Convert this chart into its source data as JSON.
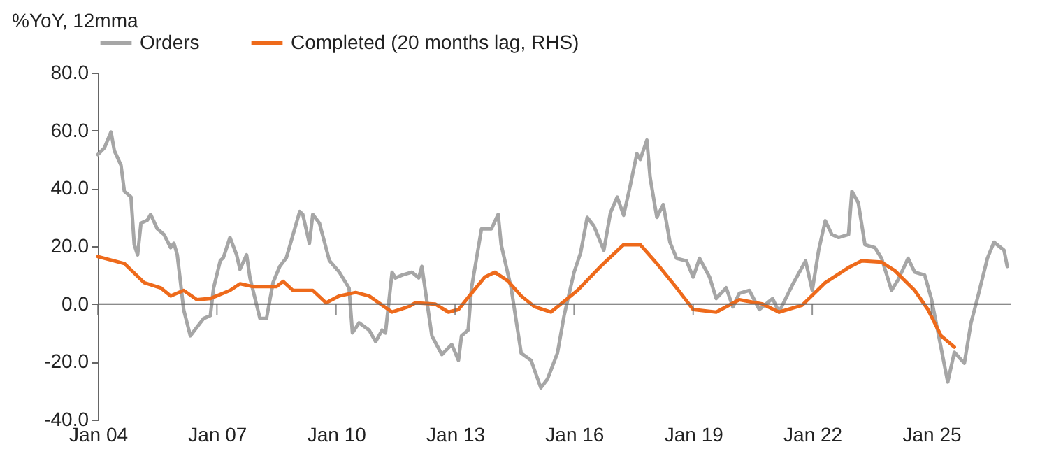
{
  "chart_data": {
    "type": "line",
    "ylabel": "%YoY, 12mma",
    "ylim": [
      -40,
      80
    ],
    "yticks": [
      {
        "value": -40,
        "label": "-40.0"
      },
      {
        "value": -20,
        "label": "-20.0"
      },
      {
        "value": 0,
        "label": "0.0"
      },
      {
        "value": 20,
        "label": "20.0"
      },
      {
        "value": 40,
        "label": "40.0"
      },
      {
        "value": 60,
        "label": "60.0"
      },
      {
        "value": 80,
        "label": "80.0"
      }
    ],
    "xlim": [
      "2004-01",
      "2027-01"
    ],
    "xticks": [
      {
        "value": "2004-01",
        "label": "Jan 04"
      },
      {
        "value": "2007-01",
        "label": "Jan 07"
      },
      {
        "value": "2010-01",
        "label": "Jan 10"
      },
      {
        "value": "2013-01",
        "label": "Jan 13"
      },
      {
        "value": "2016-01",
        "label": "Jan 16"
      },
      {
        "value": "2019-01",
        "label": "Jan 19"
      },
      {
        "value": "2022-01",
        "label": "Jan 22"
      },
      {
        "value": "2025-01",
        "label": "Jan 25"
      }
    ],
    "grid": false,
    "legend": "top",
    "marker": "none",
    "line_style": "solid",
    "ref_lines": [
      {
        "axis": "y",
        "value": 0,
        "color": "#666666"
      }
    ],
    "series": [
      {
        "name": "Orders",
        "color": "#a6a6a6",
        "x": [
          "2004-01",
          "2004-03",
          "2004-05",
          "2004-06",
          "2004-08",
          "2004-09",
          "2004-11",
          "2004-12",
          "2005-01",
          "2005-02",
          "2005-04",
          "2005-05",
          "2005-07",
          "2005-09",
          "2005-11",
          "2005-12",
          "2006-01",
          "2006-03",
          "2006-05",
          "2006-07",
          "2006-09",
          "2006-11",
          "2006-12",
          "2007-02",
          "2007-03",
          "2007-05",
          "2007-07",
          "2007-08",
          "2007-10",
          "2007-11",
          "2008-02",
          "2008-04",
          "2008-06",
          "2008-08",
          "2008-10",
          "2009-02",
          "2009-03",
          "2009-05",
          "2009-06",
          "2009-08",
          "2009-11",
          "2010-02",
          "2010-05",
          "2010-06",
          "2010-08",
          "2010-11",
          "2011-01",
          "2011-03",
          "2011-04",
          "2011-06",
          "2011-07",
          "2011-09",
          "2011-12",
          "2012-02",
          "2012-03",
          "2012-06",
          "2012-09",
          "2012-12",
          "2013-02",
          "2013-03",
          "2013-05",
          "2013-06",
          "2013-09",
          "2013-12",
          "2014-02",
          "2014-03",
          "2014-06",
          "2014-09",
          "2014-12",
          "2015-03",
          "2015-05",
          "2015-08",
          "2015-10",
          "2016-01",
          "2016-03",
          "2016-05",
          "2016-07",
          "2016-10",
          "2016-12",
          "2017-02",
          "2017-04",
          "2017-06",
          "2017-08",
          "2017-09",
          "2017-11",
          "2017-12",
          "2018-02",
          "2018-04",
          "2018-06",
          "2018-08",
          "2018-11",
          "2019-01",
          "2019-03",
          "2019-06",
          "2019-08",
          "2019-11",
          "2020-01",
          "2020-03",
          "2020-06",
          "2020-09",
          "2021-01",
          "2021-03",
          "2021-07",
          "2021-11",
          "2022-01",
          "2022-03",
          "2022-05",
          "2022-07",
          "2022-09",
          "2022-12",
          "2023-01",
          "2023-03",
          "2023-05",
          "2023-08",
          "2023-10",
          "2024-01",
          "2024-03",
          "2024-06",
          "2024-08",
          "2024-11",
          "2025-01",
          "2025-03",
          "2025-06",
          "2025-08",
          "2025-11",
          "2026-01",
          "2026-03",
          "2026-06",
          "2026-08",
          "2026-11",
          "2026-12"
        ],
        "values": [
          51.7,
          54,
          59.5,
          53,
          48,
          39,
          37,
          20.5,
          17,
          28,
          29,
          31,
          26,
          24,
          19.5,
          21,
          17,
          -2,
          -11,
          -8,
          -5,
          -4,
          5.5,
          15,
          16,
          23,
          17,
          12,
          17,
          9,
          -5,
          -5,
          7.5,
          13,
          16,
          32,
          31,
          21,
          31,
          28,
          15,
          11,
          5.5,
          -10,
          -6.5,
          -9,
          -13,
          -9,
          -10,
          11,
          9,
          10,
          11,
          9,
          13,
          -11,
          -17.5,
          -14,
          -19.5,
          -11,
          -9,
          5.5,
          26,
          26,
          31,
          20.5,
          5.5,
          -17,
          -19.5,
          -29,
          -26,
          -17,
          -4,
          11,
          17.7,
          30,
          27,
          18.6,
          31.6,
          37,
          30.7,
          41,
          52,
          50,
          56.7,
          43.7,
          30,
          34.4,
          21.4,
          15.8,
          14.9,
          9.3,
          15.8,
          9.3,
          1.9,
          5.6,
          -1,
          3.7,
          4.7,
          -1.9,
          1.9,
          -2.8,
          6.5,
          14.9,
          4.7,
          18.6,
          28.8,
          24,
          23,
          24,
          39,
          35,
          20.5,
          19.5,
          15.8,
          4.7,
          8.4,
          15.8,
          11,
          10,
          1.9,
          -9.3,
          -27,
          -16.7,
          -20.5,
          -6.5,
          1.9,
          15.8,
          21.4,
          18.6,
          13
        ]
      },
      {
        "name": "Completed (20 months lag, RHS)",
        "color": "#ee6a1b",
        "x": [
          "2004-01",
          "2004-09",
          "2005-03",
          "2005-08",
          "2005-11",
          "2006-03",
          "2006-07",
          "2006-11",
          "2007-05",
          "2007-08",
          "2007-12",
          "2008-07",
          "2008-09",
          "2008-12",
          "2009-06",
          "2009-10",
          "2010-02",
          "2010-07",
          "2010-11",
          "2011-06",
          "2011-11",
          "2012-01",
          "2012-07",
          "2012-11",
          "2013-02",
          "2013-06",
          "2013-10",
          "2014-01",
          "2014-05",
          "2014-09",
          "2015-01",
          "2015-06",
          "2015-09",
          "2016-02",
          "2016-09",
          "2017-04",
          "2017-09",
          "2018-02",
          "2018-08",
          "2019-01",
          "2019-08",
          "2020-03",
          "2020-10",
          "2021-03",
          "2021-10",
          "2022-05",
          "2022-12",
          "2023-04",
          "2023-10",
          "2024-02",
          "2024-08",
          "2024-12",
          "2025-04",
          "2025-08"
        ],
        "values": [
          16.4,
          14,
          7.4,
          5.6,
          2.8,
          4.7,
          1.5,
          1.9,
          4.7,
          7,
          6,
          6,
          7.8,
          4.7,
          4.7,
          0.4,
          2.8,
          4,
          2.8,
          -2.8,
          -0.9,
          0.4,
          0,
          -2.8,
          -1.9,
          3.7,
          9.3,
          11,
          8,
          2.8,
          -0.9,
          -2.8,
          0,
          4.7,
          13,
          20.5,
          20.5,
          14,
          5.6,
          -1.9,
          -2.8,
          1.5,
          0,
          -2.8,
          -0.4,
          7.4,
          12.6,
          14.9,
          14.5,
          11.5,
          4.7,
          -1.9,
          -11,
          -14.9
        ]
      }
    ]
  }
}
